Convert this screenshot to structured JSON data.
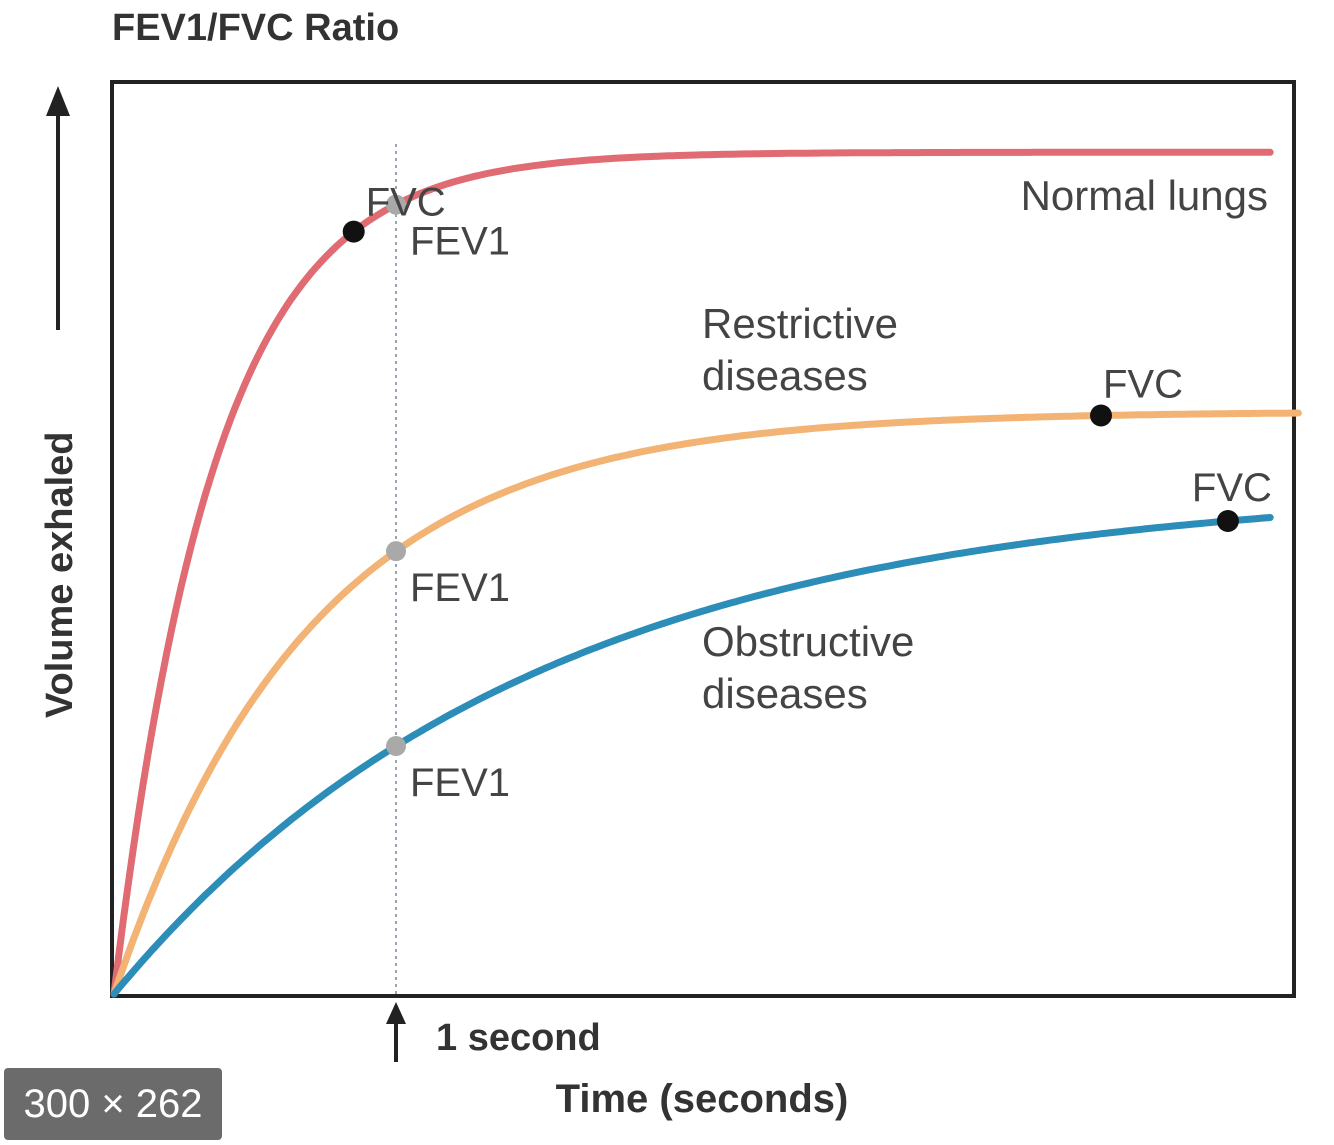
{
  "chart_data": {
    "type": "line",
    "title": "FEV1/FVC Ratio",
    "xlabel": "Time (seconds)",
    "ylabel": "Volume exhaled",
    "x_marker_label": "1 second",
    "x_marker_value": 1,
    "xlim": [
      0,
      4.2
    ],
    "ylim": [
      0,
      1
    ],
    "grid": false,
    "series": [
      {
        "name": "Normal lungs",
        "color": "#e06b72",
        "fvc": 0.925,
        "fev1": 0.845,
        "fvc_time": 0.85,
        "tau": 0.36,
        "x_end": 4.1,
        "label_lines": [
          "Normal lungs"
        ]
      },
      {
        "name": "Restrictive diseases",
        "color": "#f2b374",
        "fvc": 0.64,
        "fev1": 0.48,
        "fvc_time": 3.5,
        "tau": 0.7,
        "x_end": 4.2,
        "label_lines": [
          "Restrictive",
          "diseases"
        ]
      },
      {
        "name": "Obstructive diseases",
        "color": "#2b8db8",
        "fvc": 0.56,
        "fev1": 0.27,
        "fvc_time": 3.95,
        "tau": 1.5,
        "x_end": 4.1,
        "label_lines": [
          "Obstructive",
          "diseases"
        ]
      }
    ],
    "annotations": {
      "fev1_label": "FEV1",
      "fvc_label": "FVC"
    }
  },
  "overlay": {
    "size_badge": "300 × 262"
  }
}
